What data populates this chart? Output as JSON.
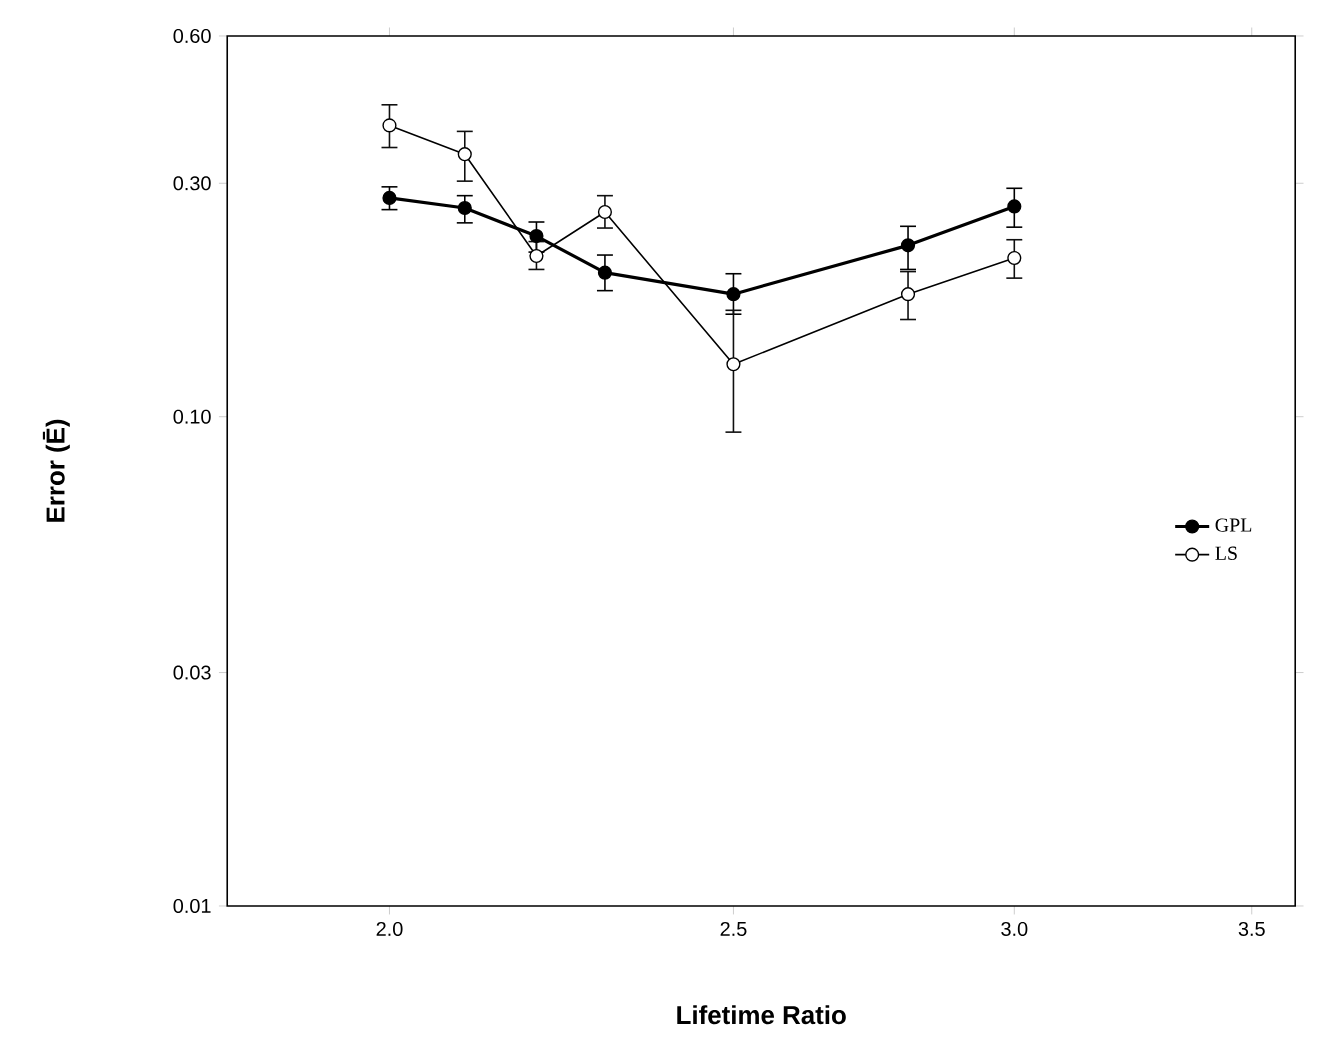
{
  "chart_data": {
    "type": "line",
    "xlabel": "Lifetime Ratio",
    "ylabel": "Error (Ē)",
    "x": [
      2.0,
      2.1,
      2.2,
      2.3,
      2.5,
      2.8,
      3.0
    ],
    "series": [
      {
        "name": "GPL",
        "color": "#000000",
        "values": [
          0.28,
          0.267,
          0.234,
          0.197,
          0.178,
          0.224,
          0.269
        ],
        "errors": [
          [
            0.265,
            0.295
          ],
          [
            0.249,
            0.283
          ],
          [
            0.217,
            0.25
          ],
          [
            0.181,
            0.214
          ],
          [
            0.162,
            0.196
          ],
          [
            0.2,
            0.245
          ],
          [
            0.244,
            0.293
          ]
        ]
      },
      {
        "name": "LS",
        "color": "#000000",
        "values": [
          0.394,
          0.344,
          0.213,
          0.262,
          0.128,
          0.178,
          0.211
        ],
        "errors": [
          [
            0.355,
            0.434
          ],
          [
            0.303,
            0.383
          ],
          [
            0.2,
            0.228
          ],
          [
            0.243,
            0.283
          ],
          [
            0.093,
            0.165
          ],
          [
            0.158,
            0.198
          ],
          [
            0.192,
            0.23
          ]
        ]
      }
    ],
    "log": "xy",
    "xlim": [
      1.8,
      3.6
    ],
    "ylim": [
      0.01,
      0.6
    ],
    "xticks": [
      {
        "value": 2.0,
        "label": "2.0"
      },
      {
        "value": 2.5,
        "label": "2.5"
      },
      {
        "value": 3.0,
        "label": "3.0"
      },
      {
        "value": 3.5,
        "label": "3.5"
      }
    ],
    "yticks": [
      {
        "value": 0.01,
        "label": "0.01"
      },
      {
        "value": 0.03,
        "label": "0.03"
      },
      {
        "value": 0.1,
        "label": "0.10"
      },
      {
        "value": 0.3,
        "label": "0.30"
      },
      {
        "value": 0.6,
        "label": "0.60"
      }
    ],
    "marker": "circle",
    "line_style": "solid",
    "grid": false,
    "legend": "right"
  }
}
